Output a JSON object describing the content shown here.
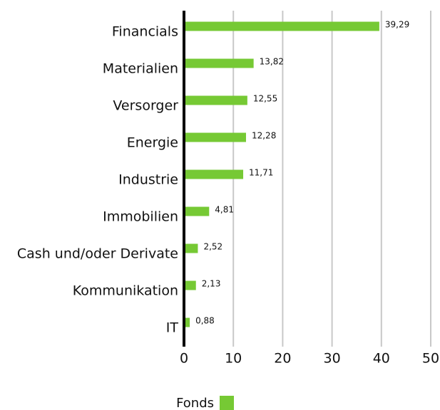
{
  "chart_data": {
    "type": "barh",
    "categories": [
      "Financials",
      "Materialien",
      "Versorger",
      "Energie",
      "Industrie",
      "Immobilien",
      "Cash und/oder Derivate",
      "Kommunikation",
      "IT"
    ],
    "series": [
      {
        "name": "Fonds",
        "color": "#76c934",
        "values": [
          39.29,
          13.82,
          12.55,
          12.28,
          11.71,
          4.81,
          2.52,
          2.13,
          0.88
        ],
        "value_labels": [
          "39,29",
          "13,82",
          "12,55",
          "12,28",
          "11,71",
          "4,81",
          "2,52",
          "2,13",
          "0,88"
        ]
      }
    ],
    "xlim": [
      0,
      50
    ],
    "xticks": [
      0,
      10,
      20,
      30,
      40,
      50
    ],
    "grid": true
  }
}
